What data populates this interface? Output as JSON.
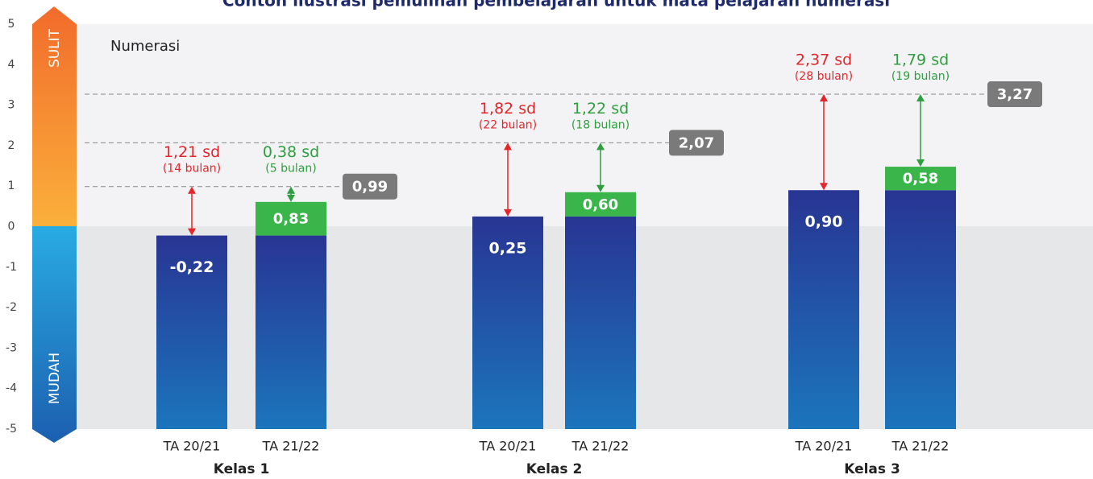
{
  "chart_data": {
    "type": "bar",
    "title": "Contoh ilustrasi pemulihan pembelajaran untuk mata pelajaran numerasi",
    "subtitle": "Numerasi",
    "scale_top": "SULIT",
    "scale_bottom": "MUDAH",
    "ylim": [
      -5,
      5
    ],
    "yticks": [
      5,
      4,
      3,
      2,
      1,
      0,
      -1,
      -2,
      -3,
      -4,
      -5
    ],
    "colors": {
      "gain": "#3ab54a",
      "gap_before": "#e4262b",
      "gap_after": "#2e9e3e",
      "target": "#7a7a7a"
    },
    "groups": [
      {
        "name": "Kelas 1",
        "target": 0.99,
        "target_label": "0,99",
        "bars": [
          {
            "category": "TA 20/21",
            "base": -0.22,
            "base_label": "-0,22",
            "gap": 1.21,
            "gap_label": "1,21 sd",
            "months": "(14 bulan)"
          },
          {
            "category": "TA 21/22",
            "base": -0.22,
            "gain": 0.83,
            "gain_label": "0,83",
            "gap": 0.38,
            "gap_label": "0,38 sd",
            "months": "(5 bulan)"
          }
        ]
      },
      {
        "name": "Kelas 2",
        "target": 2.07,
        "target_label": "2,07",
        "bars": [
          {
            "category": "TA 20/21",
            "base": 0.25,
            "base_label": "0,25",
            "gap": 1.82,
            "gap_label": "1,82 sd",
            "months": "(22 bulan)"
          },
          {
            "category": "TA 21/22",
            "base": 0.25,
            "gain": 0.6,
            "gain_label": "0,60",
            "gap": 1.22,
            "gap_label": "1,22 sd",
            "months": "(18 bulan)"
          }
        ]
      },
      {
        "name": "Kelas 3",
        "target": 3.27,
        "target_label": "3,27",
        "bars": [
          {
            "category": "TA 20/21",
            "base": 0.9,
            "base_label": "0,90",
            "gap": 2.37,
            "gap_label": "2,37 sd",
            "months": "(28 bulan)"
          },
          {
            "category": "TA 21/22",
            "base": 0.9,
            "gain": 0.58,
            "gain_label": "0,58",
            "gap": 1.79,
            "gap_label": "1,79 sd",
            "months": "(19 bulan)"
          }
        ]
      }
    ]
  }
}
